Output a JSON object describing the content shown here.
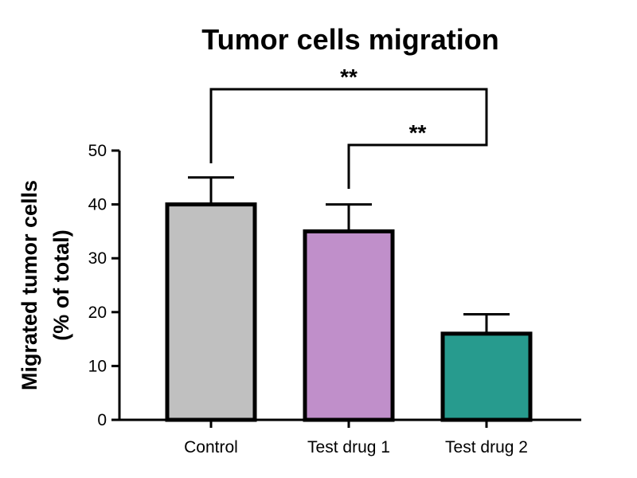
{
  "chart_data": {
    "type": "bar",
    "title": "Tumor cells migration",
    "ylabel_lines": [
      "Migrated tumor cells",
      "(% of total)"
    ],
    "xlabel": "",
    "categories": [
      "Control",
      "Test drug 1",
      "Test drug 2"
    ],
    "values": [
      40,
      35,
      16
    ],
    "error_upper": [
      5,
      5,
      3.6
    ],
    "colors": [
      "#c0c0c0",
      "#c08fca",
      "#279b8e"
    ],
    "ylim": [
      0,
      50
    ],
    "yticks": [
      "0",
      "10",
      "20",
      "30",
      "40",
      "50"
    ],
    "grid": false,
    "significance": [
      {
        "from": 0,
        "to": 2,
        "label": "**"
      },
      {
        "from": 1,
        "to": 2,
        "label": "**"
      }
    ]
  }
}
